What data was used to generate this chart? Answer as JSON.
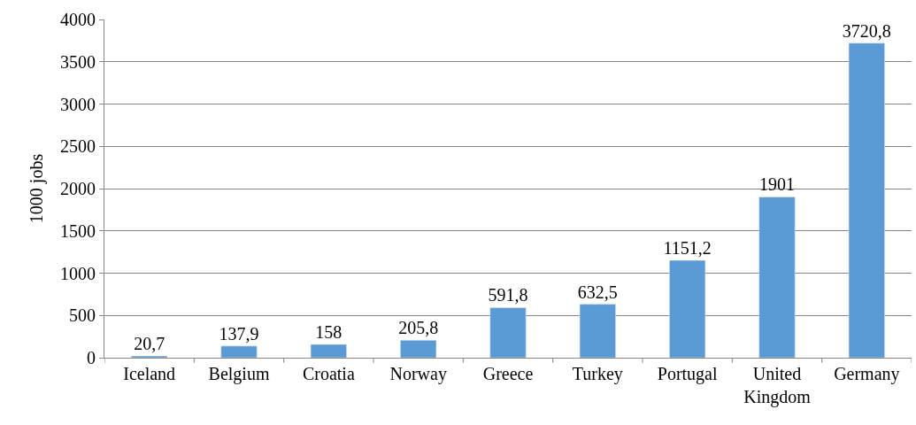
{
  "chart_data": {
    "type": "bar",
    "ylabel": "1000 jobs",
    "categories": [
      "Iceland",
      "Belgium",
      "Croatia",
      "Norway",
      "Greece",
      "Turkey",
      "Portugal",
      "United Kingdom",
      "Germany"
    ],
    "values": [
      20.7,
      137.9,
      158,
      205.8,
      591.8,
      632.5,
      1151.2,
      1901,
      3720.8
    ],
    "value_labels": [
      "20,7",
      "137,9",
      "158",
      "205,8",
      "591,8",
      "632,5",
      "1151,2",
      "1901",
      "3720,8"
    ],
    "color": "#5b9bd5",
    "ylim": [
      0,
      4000
    ],
    "yticks": [
      0,
      500,
      1000,
      1500,
      2000,
      2500,
      3000,
      3500,
      4000
    ],
    "grid": "y"
  }
}
